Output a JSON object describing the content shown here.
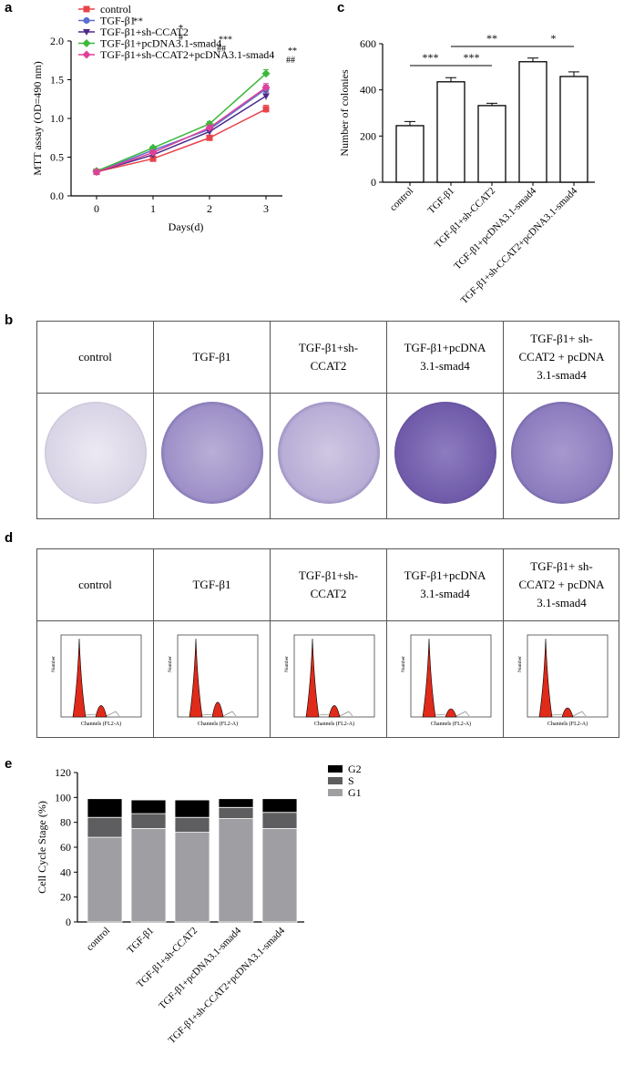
{
  "panels": {
    "a": "a",
    "b": "b",
    "c": "c",
    "d": "d",
    "e": "e"
  },
  "group_labels": [
    "control",
    "TGF-β1",
    "TGF-β1+sh-\nCCAT2",
    "TGF-β1+pcDNA\n3.1-smad4",
    "TGF-β1+ sh-\nCCAT2 + pcDNA\n3.1-smad4"
  ],
  "histogram": {
    "ylabel": "Number",
    "xlabel": "Channels (FL2-A)"
  },
  "colors": {
    "control": "#e8434a",
    "TGF": "#5a6fd0",
    "sh": "#4b2a8a",
    "pc": "#3cb83c",
    "combo": "#e0409a",
    "plate_stain": "#5a3a9a",
    "histo_red": "#e02a1a",
    "bar": "#9e9ea3",
    "S": "#5e5e60",
    "G2": "#000000"
  },
  "chart_data": [
    {
      "id": "mtt",
      "type": "line",
      "xlabel": "Days(d)",
      "ylabel": "MTT assay (OD=490 nm)",
      "x": [
        0,
        1,
        2,
        3
      ],
      "xticks": [
        "0",
        "1",
        "2",
        "3"
      ],
      "yticks": [
        "0.0",
        "0.5",
        "1.0",
        "1.5",
        "2.0"
      ],
      "ylim": [
        0,
        2.0
      ],
      "legend": "top-left",
      "series": [
        {
          "name": "control",
          "sig": "",
          "values": [
            0.31,
            0.48,
            0.75,
            1.12
          ],
          "err": [
            0.02,
            0.02,
            0.03,
            0.05
          ],
          "marker": "square",
          "color": "#e8434a"
        },
        {
          "name": "TGF-β1",
          "sig": "**",
          "values": [
            0.31,
            0.59,
            0.86,
            1.38
          ],
          "err": [
            0.02,
            0.02,
            0.03,
            0.05
          ],
          "marker": "circle",
          "color": "#5a6fd0"
        },
        {
          "name": "TGF-β1+sh-CCAT2",
          "sig": "*\n#",
          "values": [
            0.31,
            0.53,
            0.83,
            1.29
          ],
          "err": [
            0.02,
            0.02,
            0.03,
            0.05
          ],
          "marker": "triangle",
          "color": "#4b2a8a"
        },
        {
          "name": "TGF-β1+pcDNA3.1-smad4",
          "sig": "***\n##",
          "values": [
            0.32,
            0.62,
            0.93,
            1.58
          ],
          "err": [
            0.02,
            0.02,
            0.03,
            0.05
          ],
          "marker": "diamond",
          "color": "#3cb83c"
        },
        {
          "name": "TGF-β1+sh-CCAT2+pcDNA3.1-smad4",
          "sig": "**\n##",
          "values": [
            0.31,
            0.56,
            0.88,
            1.4
          ],
          "err": [
            0.02,
            0.02,
            0.03,
            0.05
          ],
          "marker": "diamond",
          "color": "#e0409a"
        }
      ]
    },
    {
      "id": "colonies",
      "type": "bar",
      "ylabel": "Number of colonies",
      "categories": [
        "control",
        "TGF-β1",
        "TGF-β1+sh-CCAT2",
        "TGF-β1+pcDNA3.1-smad4",
        "TGF-β1+sh-CCAT2+pcDNA3.1-smad4"
      ],
      "values": [
        245,
        435,
        332,
        522,
        458
      ],
      "err": [
        18,
        18,
        10,
        16,
        20
      ],
      "ylim": [
        0,
        600
      ],
      "yticks": [
        "0",
        "200",
        "400",
        "600"
      ],
      "brackets": [
        {
          "from": 0,
          "to": 1,
          "label": "***"
        },
        {
          "from": 1,
          "to": 2,
          "label": "***"
        },
        {
          "from": 1,
          "to": 3,
          "label": "**"
        },
        {
          "from": 3,
          "to": 4,
          "label": "*"
        }
      ]
    },
    {
      "id": "cellcycle",
      "type": "bar",
      "stacked": true,
      "ylabel": "Cell Cycle Stage (%)",
      "categories": [
        "control",
        "TGF-β1",
        "TGF-β1+sh-CCAT2",
        "TGF-β1+pcDNA3.1-smad4",
        "TGF-β1+sh-CCAT2+pcDNA3.1-smad4"
      ],
      "ylim": [
        0,
        120
      ],
      "yticks": [
        "0",
        "20",
        "40",
        "60",
        "80",
        "100",
        "120"
      ],
      "legend": "top-right",
      "series": [
        {
          "name": "G1",
          "values": [
            68,
            75,
            72,
            83,
            75
          ],
          "color": "#9e9ea3"
        },
        {
          "name": "S",
          "values": [
            16,
            12,
            12,
            9,
            13
          ],
          "color": "#5e5e60"
        },
        {
          "name": "G2",
          "values": [
            15,
            11,
            14,
            7,
            11
          ],
          "color": "#000000"
        }
      ]
    }
  ]
}
